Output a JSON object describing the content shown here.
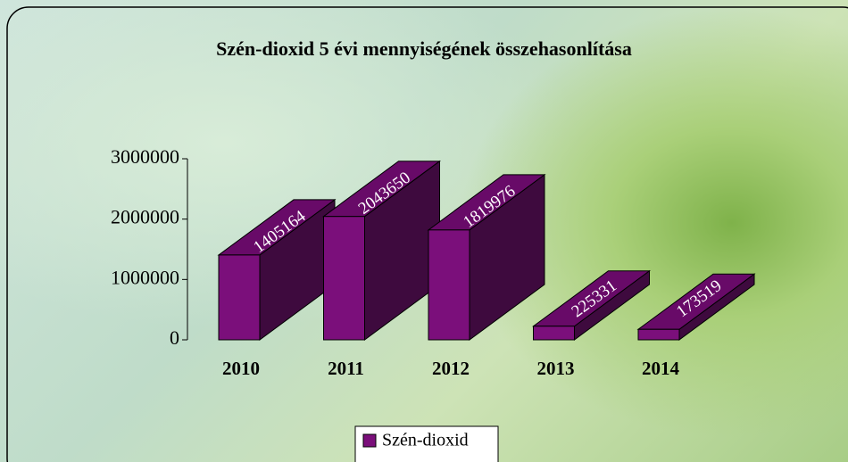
{
  "chart_data": {
    "type": "bar3d",
    "title": "Szén-dioxid 5 évi mennyiségének összehasonlítása",
    "categories": [
      "2010",
      "2011",
      "2012",
      "2013",
      "2014"
    ],
    "series": [
      {
        "name": "Szén-dioxid",
        "color": "#7b0f7b",
        "values": [
          1405164,
          2043650,
          1819976,
          225331,
          173519
        ]
      }
    ],
    "ylim": [
      0,
      3000000
    ],
    "yticks": [
      0,
      1000000,
      2000000,
      3000000
    ],
    "legend": "bottom"
  }
}
